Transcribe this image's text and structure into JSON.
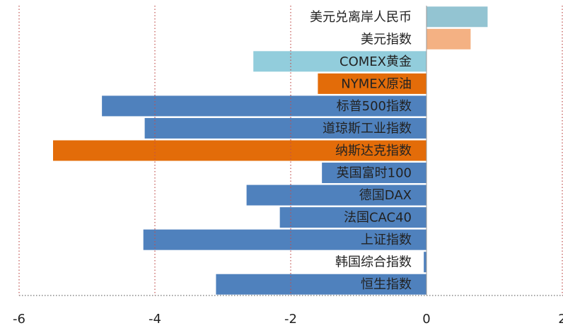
{
  "chart_data": {
    "type": "hbar",
    "categories": [
      "美元兑离岸人民币",
      "美元指数",
      "COMEX黄金",
      "NYMEX原油",
      "标普500指数",
      "道琼斯工业指数",
      "纳斯达克指数",
      "英国富时100",
      "德国DAX",
      "法国CAC40",
      "上证指数",
      "韩国综合指数",
      "恒生指数"
    ],
    "values": [
      0.9,
      0.65,
      -2.55,
      -1.6,
      -4.78,
      -4.15,
      -5.5,
      -1.54,
      -2.65,
      -2.16,
      -4.17,
      -0.04,
      -3.1
    ],
    "colors": [
      "#93c4d2",
      "#f4b183",
      "#92cddc",
      "#e36c09",
      "#4f81bd",
      "#4f81bd",
      "#e36c09",
      "#4f81bd",
      "#4f81bd",
      "#4f81bd",
      "#4f81bd",
      "#4f81bd",
      "#4f81bd"
    ],
    "xlim": [
      -6,
      2
    ],
    "xticks": [
      -6,
      -4,
      -2,
      0,
      2
    ],
    "grid": true
  }
}
